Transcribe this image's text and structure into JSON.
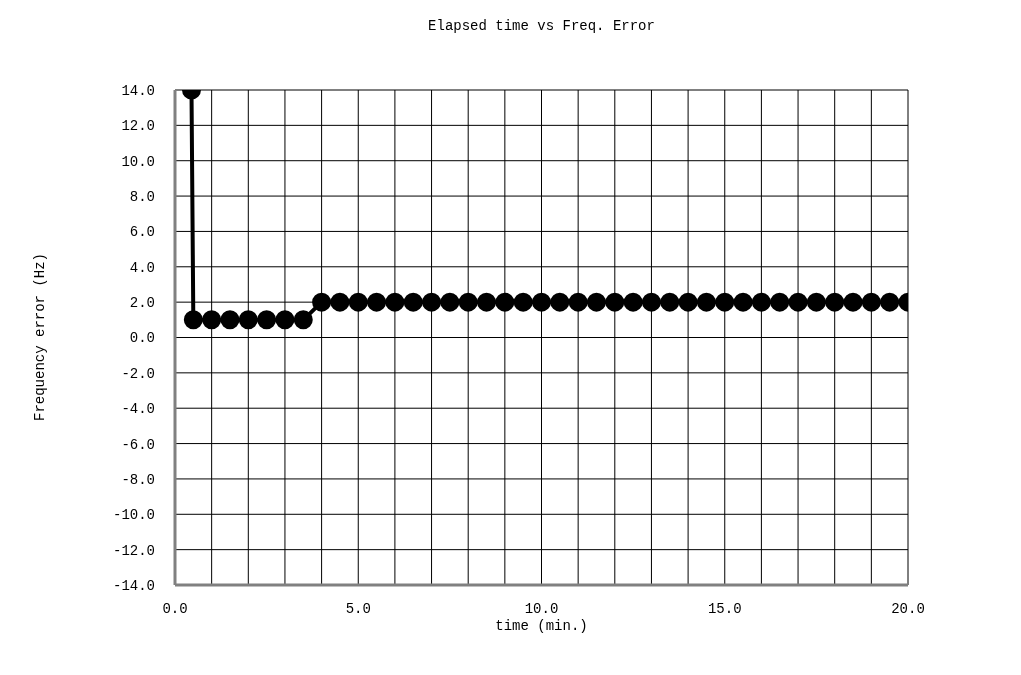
{
  "chart_data": {
    "type": "line",
    "title": "Elapsed time vs Freq. Error",
    "xlabel": "time (min.)",
    "ylabel": "Frequency error (Hz)",
    "series": [
      {
        "color": "#000000",
        "marker": "circle",
        "x": [
          0.45,
          0.5,
          1,
          1.5,
          2,
          2.5,
          3,
          3.5,
          4,
          4.5,
          5,
          5.5,
          6,
          6.5,
          7,
          7.5,
          8,
          8.5,
          9,
          9.5,
          10,
          10.5,
          11,
          11.5,
          12,
          12.5,
          13,
          13.5,
          14,
          14.5,
          15,
          15.5,
          16,
          16.5,
          17,
          17.5,
          18,
          18.5,
          19,
          19.5,
          20
        ],
        "values": [
          14,
          1,
          1,
          1,
          1,
          1,
          1,
          1,
          2,
          2,
          2,
          2,
          2,
          2,
          2,
          2,
          2,
          2,
          2,
          2,
          2,
          2,
          2,
          2,
          2,
          2,
          2,
          2,
          2,
          2,
          2,
          2,
          2,
          2,
          2,
          2,
          2,
          2,
          2,
          2,
          2
        ]
      }
    ],
    "xlim": [
      0,
      20
    ],
    "xticks": [
      {
        "value": 0,
        "label": "0.0"
      },
      {
        "value": 1,
        "label": null
      },
      {
        "value": 2,
        "label": null
      },
      {
        "value": 3,
        "label": null
      },
      {
        "value": 4,
        "label": null
      },
      {
        "value": 5,
        "label": "5.0"
      },
      {
        "value": 6,
        "label": null
      },
      {
        "value": 7,
        "label": null
      },
      {
        "value": 8,
        "label": null
      },
      {
        "value": 9,
        "label": null
      },
      {
        "value": 10,
        "label": "10.0"
      },
      {
        "value": 11,
        "label": null
      },
      {
        "value": 12,
        "label": null
      },
      {
        "value": 13,
        "label": null
      },
      {
        "value": 14,
        "label": null
      },
      {
        "value": 15,
        "label": "15.0"
      },
      {
        "value": 16,
        "label": null
      },
      {
        "value": 17,
        "label": null
      },
      {
        "value": 18,
        "label": null
      },
      {
        "value": 19,
        "label": null
      },
      {
        "value": 20,
        "label": "20.0"
      }
    ],
    "ylim": [
      -14,
      14
    ],
    "yticks": [
      {
        "value": -14,
        "label": "-14.0"
      },
      {
        "value": -12,
        "label": "-12.0"
      },
      {
        "value": -10,
        "label": "-10.0"
      },
      {
        "value": -8,
        "label": "-8.0"
      },
      {
        "value": -6,
        "label": "-6.0"
      },
      {
        "value": -4,
        "label": "-4.0"
      },
      {
        "value": -2,
        "label": "-2.0"
      },
      {
        "value": 0,
        "label": "0.0"
      },
      {
        "value": 2,
        "label": "2.0"
      },
      {
        "value": 4,
        "label": "4.0"
      },
      {
        "value": 6,
        "label": "6.0"
      },
      {
        "value": 8,
        "label": "8.0"
      },
      {
        "value": 10,
        "label": "10.0"
      },
      {
        "value": 12,
        "label": "12.0"
      },
      {
        "value": 14,
        "label": "14.0"
      }
    ],
    "grid": true,
    "line_style": "solid"
  }
}
